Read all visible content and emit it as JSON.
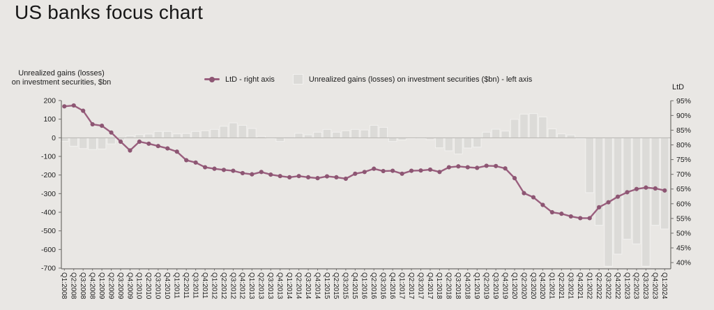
{
  "page": {
    "title": "US banks focus chart"
  },
  "legend": {
    "line_series_label": "LtD - right axis",
    "bar_series_label": "Unrealized gains (losses) on investment securities ($bn) - left axis"
  },
  "colors": {
    "background": "#e9e7e4",
    "bar_fill": "#dcdbd8",
    "bar_border": "#f2f1ef",
    "line": "#9a5f7e",
    "marker": "#8d5673",
    "zero_line": "#b4b2af",
    "axis_line": "#6f6d6a",
    "text": "#1c1c1c"
  },
  "chart_data": {
    "type": "combo",
    "title": "US banks focus chart",
    "legend_position": "top",
    "grid": false,
    "categories": [
      "Q1:2008",
      "Q2:2008",
      "Q3:2008",
      "Q4:2008",
      "Q1:2009",
      "Q2:2009",
      "Q3:2009",
      "Q4:2009",
      "Q1:2010",
      "Q2:2010",
      "Q3:2010",
      "Q4:2010",
      "Q1:2011",
      "Q2:2011",
      "Q3:2011",
      "Q4:2011",
      "Q1:2012",
      "Q2:2012",
      "Q3:2012",
      "Q4:2012",
      "Q1:2013",
      "Q2:2013",
      "Q3:2013",
      "Q4:2013",
      "Q1:2014",
      "Q2:2014",
      "Q3:2014",
      "Q4:2014",
      "Q1:2015",
      "Q2:2015",
      "Q3:2015",
      "Q4:2015",
      "Q1:2016",
      "Q2:2016",
      "Q3:2016",
      "Q4:2016",
      "Q1:2017",
      "Q2:2017",
      "Q3:2017",
      "Q4:2017",
      "Q1:2018",
      "Q2:2018",
      "Q3:2018",
      "Q4:2018",
      "Q1:2019",
      "Q2:2019",
      "Q3:2019",
      "Q4:2019",
      "Q1:2020",
      "Q2:2020",
      "Q3:2020",
      "Q4:2020",
      "Q1:2021",
      "Q2:2021",
      "Q3:2021",
      "Q4:2021",
      "Q1:2022",
      "Q2:2022",
      "Q3:2022",
      "Q4:2022",
      "Q1:2023",
      "Q2:2023",
      "Q3:2023",
      "Q4:2023",
      "Q1:2024"
    ],
    "series": [
      {
        "name": "Unrealized gains (losses) on investment securities ($bn) - left axis",
        "type": "bar",
        "axis": "left",
        "values": [
          -19,
          -45,
          -58,
          -63,
          -60,
          -33,
          -12,
          10,
          17,
          20,
          34,
          34,
          21,
          23,
          34,
          38,
          45,
          62,
          80,
          67,
          50,
          8,
          -3,
          -20,
          0,
          24,
          16,
          30,
          45,
          30,
          38,
          45,
          42,
          67,
          56,
          -20,
          -12,
          -4,
          -3,
          -10,
          -54,
          -70,
          -87,
          -55,
          -50,
          30,
          46,
          36,
          99,
          127,
          130,
          112,
          48,
          21,
          15,
          -5,
          -295,
          -470,
          -690,
          -625,
          -545,
          -570,
          -690,
          -470,
          -490
        ]
      },
      {
        "name": "LtD - right axis",
        "type": "line",
        "axis": "right",
        "values": [
          93.1,
          93.4,
          91.6,
          87.0,
          86.5,
          84.2,
          81.1,
          78.1,
          81.1,
          80.4,
          79.6,
          78.8,
          77.7,
          74.8,
          74.0,
          72.4,
          71.9,
          71.5,
          71.2,
          70.4,
          70.0,
          70.8,
          69.9,
          69.4,
          69.0,
          69.4,
          69.0,
          68.7,
          69.3,
          69.0,
          68.5,
          70.2,
          70.8,
          71.9,
          71.1,
          71.2,
          70.2,
          71.2,
          71.3,
          71.6,
          70.8,
          72.4,
          72.7,
          72.4,
          72.2,
          72.9,
          72.8,
          72.0,
          68.7,
          63.6,
          62.2,
          59.6,
          57.1,
          56.6,
          55.7,
          55.1,
          55.1,
          58.8,
          60.5,
          62.4,
          63.9,
          65.0,
          65.5,
          65.2,
          64.5
        ]
      }
    ],
    "left_axis": {
      "title_line1": "Unrealized gains (losses)",
      "title_line2": "on investment securities, $bn",
      "min": -700,
      "max": 200,
      "step": 100
    },
    "right_axis": {
      "title": "LtD",
      "min": 40,
      "max": 95,
      "step": 5,
      "suffix": "%"
    }
  }
}
